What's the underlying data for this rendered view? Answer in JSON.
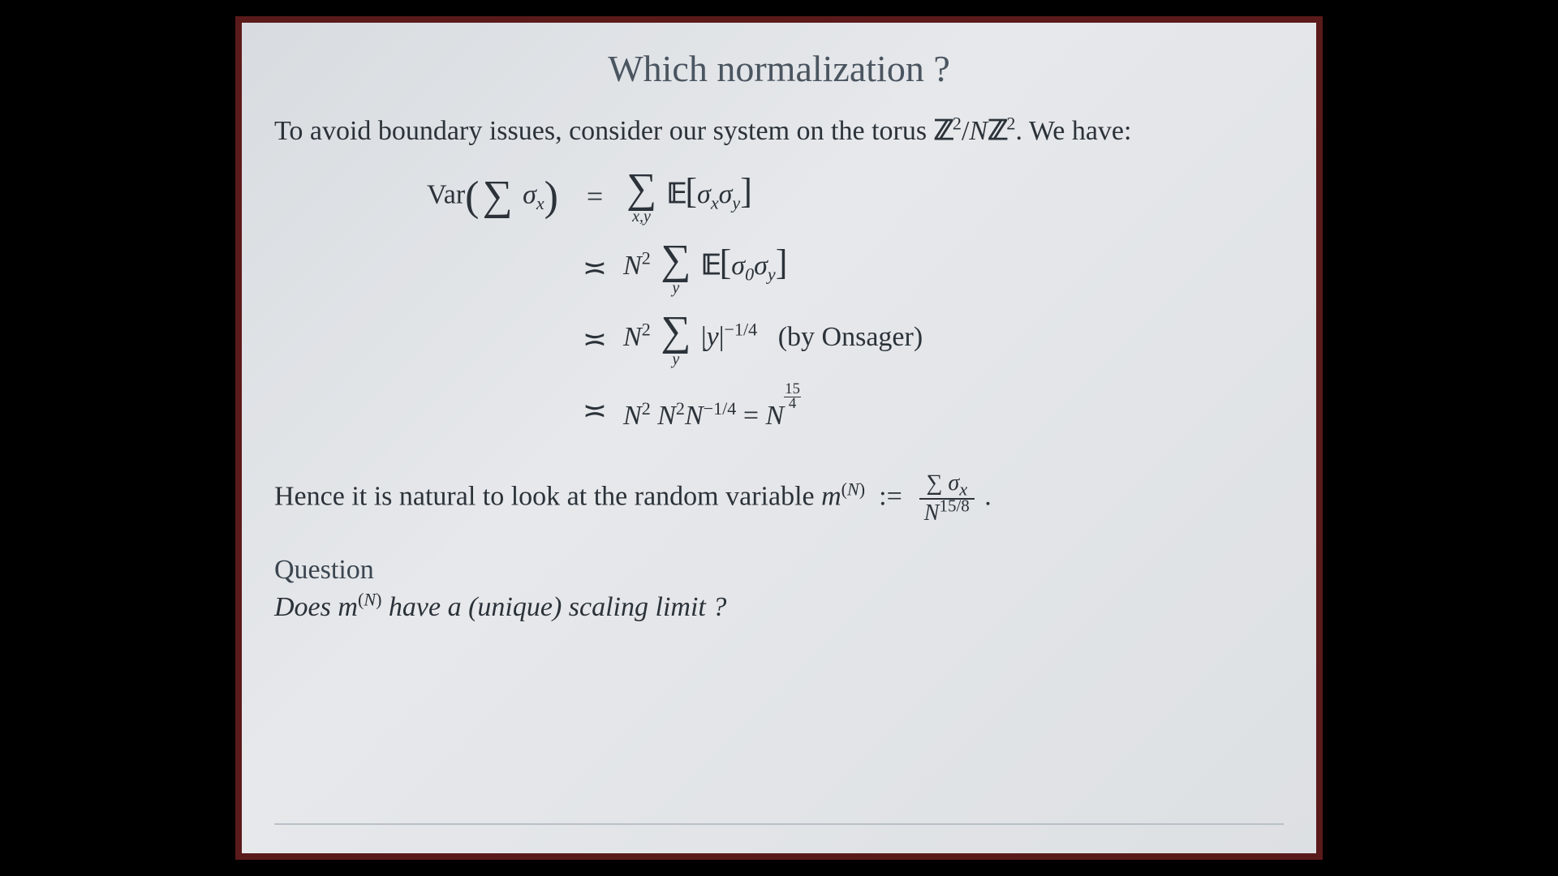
{
  "background_color": "#000000",
  "frame_color": "#5a1a1a",
  "slide": {
    "bg_gradient": [
      "#d8dce0",
      "#e6e8eb",
      "#dde0e3"
    ],
    "text_color": "#2b3239",
    "title_color": "#4a5560",
    "title_fontsize": 46,
    "body_fontsize": 34,
    "title": "Which normalization ?",
    "intro_prefix": "To avoid boundary issues, consider our system on the torus ",
    "torus_tex": "ℤ²/Nℤ²",
    "intro_suffix": ". We have:",
    "equations": {
      "line1": {
        "left": "Var(∑ σₓ)",
        "rel": "=",
        "right": "∑_{x,y} 𝔼[σₓσ_y]"
      },
      "line2": {
        "rel": "≍",
        "right": "N² ∑_y 𝔼[σ₀σ_y]"
      },
      "line3": {
        "rel": "≍",
        "right": "N² ∑_y |y|^{-1/4}",
        "note": "(by Onsager)"
      },
      "line4": {
        "rel": "≍",
        "right": "N² N² N^{-1/4} = N^{15/4}"
      }
    },
    "hence_prefix": "Hence it is natural to look at the random variable ",
    "hence_var": "m^{(N)} := (∑ σₓ) / N^{15/8}",
    "question_label": "Question",
    "question_text_prefix": "Does ",
    "question_var": "m^{(N)}",
    "question_text_suffix": " have a (unique) scaling limit ?"
  }
}
